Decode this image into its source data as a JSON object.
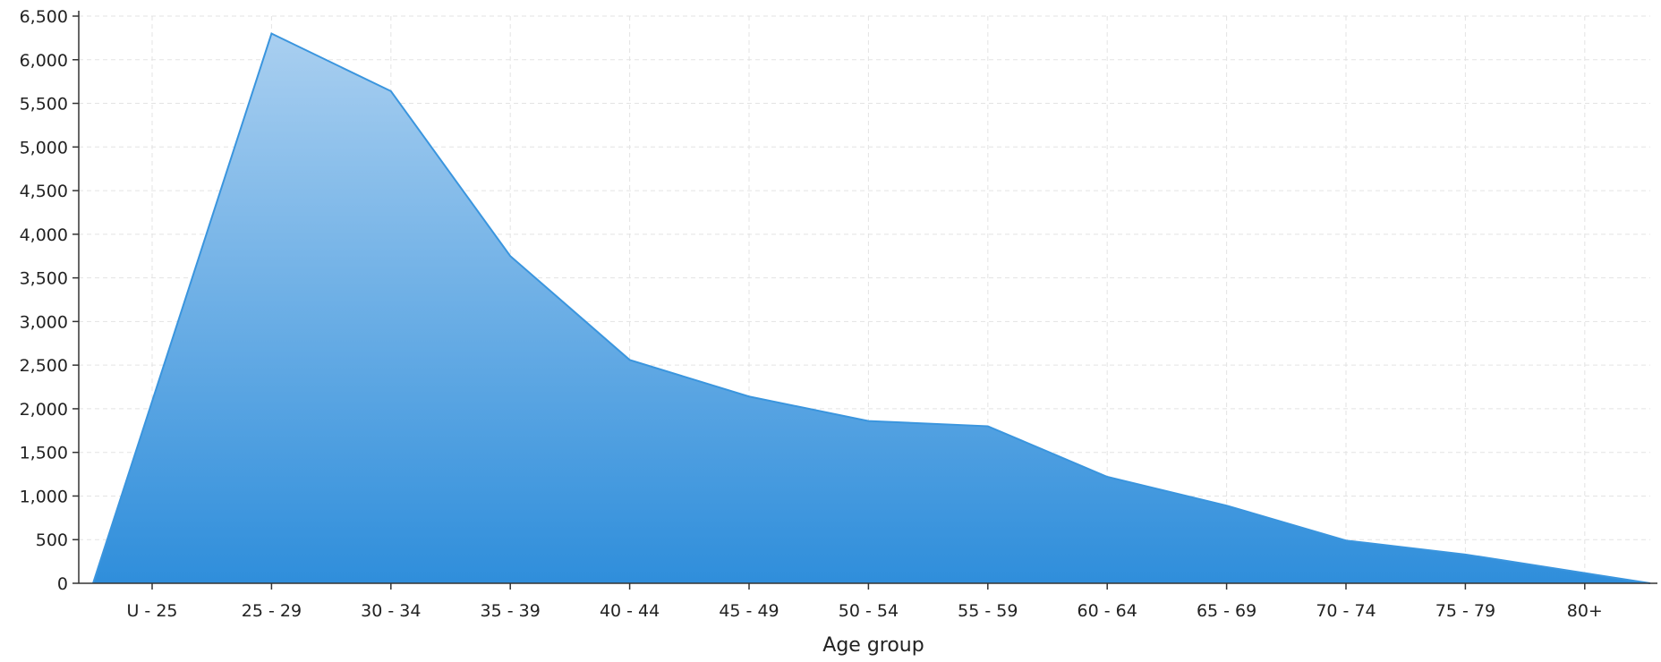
{
  "chart_data": {
    "type": "area",
    "title": "",
    "xlabel": "Age group",
    "ylabel": "",
    "categories": [
      "U - 25",
      "25 - 29",
      "30 - 34",
      "35 - 39",
      "40 - 44",
      "45 - 49",
      "50 - 54",
      "55 - 59",
      "60 - 64",
      "65 - 69",
      "70 - 74",
      "75 - 79",
      "80+"
    ],
    "x_domain_start": "U - 25",
    "values": [
      0,
      6300,
      5640,
      3750,
      2560,
      2140,
      1860,
      1800,
      1220,
      890,
      490,
      330,
      0
    ],
    "ylim": [
      0,
      6500
    ],
    "yticks": [
      0,
      500,
      1000,
      1500,
      2000,
      2500,
      3000,
      3500,
      4000,
      4500,
      5000,
      5500,
      6000,
      6500
    ],
    "ytick_labels": [
      "0",
      "500",
      "1,000",
      "1,500",
      "2,000",
      "2,500",
      "3,000",
      "3,500",
      "4,000",
      "4,500",
      "5,000",
      "5,500",
      "6,000",
      "6,500"
    ],
    "grid": true,
    "legend": "none",
    "colors": {
      "fill_top": "#a9cff0",
      "fill_bottom": "#2f8edb",
      "line": "#3a95de"
    }
  }
}
